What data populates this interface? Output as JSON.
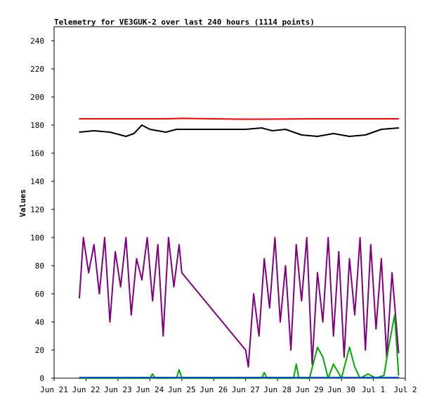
{
  "chart_data": {
    "type": "line",
    "title": "Telemetry for VE3GUK-2 over last 240 hours (1114 points)",
    "xlabel": "",
    "ylabel": "Values",
    "x_unit": "date",
    "x_range": [
      "2023-06-21",
      "2023-07-02"
    ],
    "x_ticks": [
      "Jun 21",
      "Jun 22",
      "Jun 23",
      "Jun 24",
      "Jun 25",
      "Jun 26",
      "Jun 27",
      "Jun 28",
      "Jun 29",
      "Jun 30",
      "Jul 1",
      "Jul 2"
    ],
    "ylim": [
      0,
      250
    ],
    "y_ticks": [
      0,
      20,
      40,
      60,
      80,
      100,
      120,
      140,
      160,
      180,
      200,
      220,
      240
    ],
    "grid": false,
    "legend": "none",
    "colors": {
      "background": "#ffffff",
      "axes": "#000000",
      "series_red": "#ff0000",
      "series_black": "#000000",
      "series_purple": "#800080",
      "series_green": "#00aa00",
      "series_blue": "#0055cc"
    },
    "series": [
      {
        "color": "#ff0000",
        "x": [
          "Jun 21 19:00",
          "Jun 22 12:00",
          "Jun 23 12:00",
          "Jun 24 12:00",
          "Jun 25 00:00",
          "Jun 27 00:00",
          "Jun 28 00:00",
          "Jun 29 00:00",
          "Jun 30 00:00",
          "Jul 1 00:00",
          "Jul 1 19:00"
        ],
        "y": [
          184.5,
          184.5,
          184.5,
          184.5,
          184.8,
          184.2,
          184.3,
          184.5,
          184.5,
          184.5,
          184.5
        ]
      },
      {
        "color": "#000000",
        "x": [
          "Jun 21 19:00",
          "Jun 22 06:00",
          "Jun 22 18:00",
          "Jun 23 06:00",
          "Jun 23 12:00",
          "Jun 23 18:00",
          "Jun 24 00:00",
          "Jun 24 06:00",
          "Jun 24 12:00",
          "Jun 24 20:00",
          "Jun 25 00:00",
          "Jun 27 00:00",
          "Jun 27 12:00",
          "Jun 27 20:00",
          "Jun 28 06:00",
          "Jun 28 18:00",
          "Jun 29 06:00",
          "Jun 29 18:00",
          "Jun 30 06:00",
          "Jun 30 18:00",
          "Jul 1 06:00",
          "Jul 1 19:00"
        ],
        "y": [
          175,
          176,
          175,
          172,
          174,
          180,
          177,
          176,
          175,
          177,
          177,
          177,
          178,
          176,
          177,
          173,
          172,
          174,
          172,
          173,
          177,
          178
        ]
      },
      {
        "color": "#800080",
        "x": [
          "Jun 21 19:00",
          "Jun 21 22:00",
          "Jun 22 02:00",
          "Jun 22 06:00",
          "Jun 22 10:00",
          "Jun 22 14:00",
          "Jun 22 18:00",
          "Jun 22 22:00",
          "Jun 23 02:00",
          "Jun 23 06:00",
          "Jun 23 10:00",
          "Jun 23 14:00",
          "Jun 23 18:00",
          "Jun 23 22:00",
          "Jun 24 02:00",
          "Jun 24 06:00",
          "Jun 24 10:00",
          "Jun 24 14:00",
          "Jun 24 18:00",
          "Jun 24 22:00",
          "Jun 25 00:00",
          "Jun 27 00:00",
          "Jun 27 02:00",
          "Jun 27 06:00",
          "Jun 27 10:00",
          "Jun 27 14:00",
          "Jun 27 18:00",
          "Jun 27 22:00",
          "Jun 28 02:00",
          "Jun 28 06:00",
          "Jun 28 10:00",
          "Jun 28 14:00",
          "Jun 28 18:00",
          "Jun 28 22:00",
          "Jun 29 02:00",
          "Jun 29 06:00",
          "Jun 29 10:00",
          "Jun 29 14:00",
          "Jun 29 18:00",
          "Jun 29 22:00",
          "Jun 30 02:00",
          "Jun 30 06:00",
          "Jun 30 10:00",
          "Jun 30 14:00",
          "Jun 30 18:00",
          "Jun 30 22:00",
          "Jul 1 02:00",
          "Jul 1 06:00",
          "Jul 1 10:00",
          "Jul 1 14:00",
          "Jul 1 19:00"
        ],
        "y": [
          57,
          100,
          75,
          95,
          60,
          100,
          40,
          90,
          65,
          100,
          45,
          85,
          70,
          100,
          55,
          95,
          30,
          100,
          65,
          95,
          75,
          20,
          8,
          60,
          30,
          85,
          50,
          100,
          40,
          80,
          20,
          95,
          55,
          100,
          10,
          75,
          40,
          100,
          30,
          90,
          15,
          85,
          45,
          100,
          20,
          95,
          35,
          85,
          15,
          75,
          18
        ]
      },
      {
        "color": "#00aa00",
        "x": [
          "Jun 21 19:00",
          "Jun 24 00:00",
          "Jun 24 02:00",
          "Jun 24 04:00",
          "Jun 24 20:00",
          "Jun 24 22:00",
          "Jun 25 00:00",
          "Jun 27 00:00",
          "Jun 27 12:00",
          "Jun 27 14:00",
          "Jun 27 16:00",
          "Jun 28 12:00",
          "Jun 28 14:00",
          "Jun 28 16:00",
          "Jun 29 00:00",
          "Jun 29 06:00",
          "Jun 29 10:00",
          "Jun 29 14:00",
          "Jun 29 18:00",
          "Jun 30 00:00",
          "Jun 30 06:00",
          "Jun 30 10:00",
          "Jun 30 14:00",
          "Jun 30 20:00",
          "Jul 1 02:00",
          "Jul 1 08:00",
          "Jul 1 12:00",
          "Jul 1 16:00",
          "Jul 1 19:00"
        ],
        "y": [
          0,
          0,
          3,
          0,
          0,
          6,
          0,
          0,
          0,
          4,
          0,
          0,
          10,
          0,
          0,
          22,
          15,
          0,
          10,
          0,
          22,
          8,
          0,
          3,
          0,
          2,
          25,
          45,
          2
        ]
      },
      {
        "color": "#0055cc",
        "x": [
          "Jun 21 19:00",
          "Jul 1 19:00"
        ],
        "y": [
          0.5,
          0.5
        ]
      }
    ]
  }
}
